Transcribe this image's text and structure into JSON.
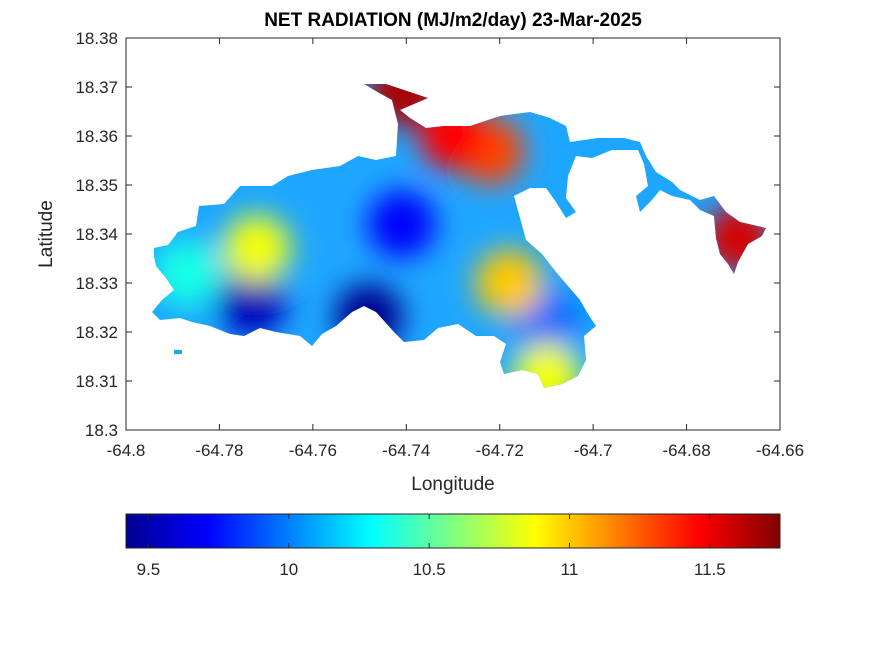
{
  "chart_data": {
    "type": "heatmap",
    "title": "NET RADIATION (MJ/m2/day) 23-Mar-2025",
    "xlabel": "Longitude",
    "ylabel": "Latitude",
    "xlim": [
      -64.8,
      -64.66
    ],
    "ylim": [
      18.3,
      18.38
    ],
    "x_ticks": [
      "-64.8",
      "-64.78",
      "-64.76",
      "-64.74",
      "-64.72",
      "-64.7",
      "-64.68",
      "-64.66"
    ],
    "y_ticks": [
      "18.3",
      "18.31",
      "18.32",
      "18.33",
      "18.34",
      "18.35",
      "18.36",
      "18.37",
      "18.38"
    ],
    "grid": false,
    "colormap": "jet",
    "colorbar": {
      "position": "bottom",
      "range": [
        9.42,
        11.75
      ],
      "ticks": [
        "9.5",
        "10",
        "10.5",
        "11",
        "11.5"
      ]
    },
    "hotspots": [
      {
        "lon": -64.773,
        "lat": 18.326,
        "value": 9.55
      },
      {
        "lon": -64.748,
        "lat": 18.323,
        "value": 9.45
      },
      {
        "lon": -64.741,
        "lat": 18.342,
        "value": 9.7
      },
      {
        "lon": -64.772,
        "lat": 18.337,
        "value": 10.85
      },
      {
        "lon": -64.787,
        "lat": 18.332,
        "value": 10.35
      },
      {
        "lon": -64.71,
        "lat": 18.322,
        "value": 9.95
      },
      {
        "lon": -64.722,
        "lat": 18.357,
        "value": 11.3
      },
      {
        "lon": -64.73,
        "lat": 18.36,
        "value": 11.45
      },
      {
        "lon": -64.741,
        "lat": 18.369,
        "value": 11.65
      },
      {
        "lon": -64.669,
        "lat": 18.339,
        "value": 11.55
      },
      {
        "lon": -64.718,
        "lat": 18.33,
        "value": 11.0
      },
      {
        "lon": -64.71,
        "lat": 18.311,
        "value": 10.85
      }
    ]
  }
}
